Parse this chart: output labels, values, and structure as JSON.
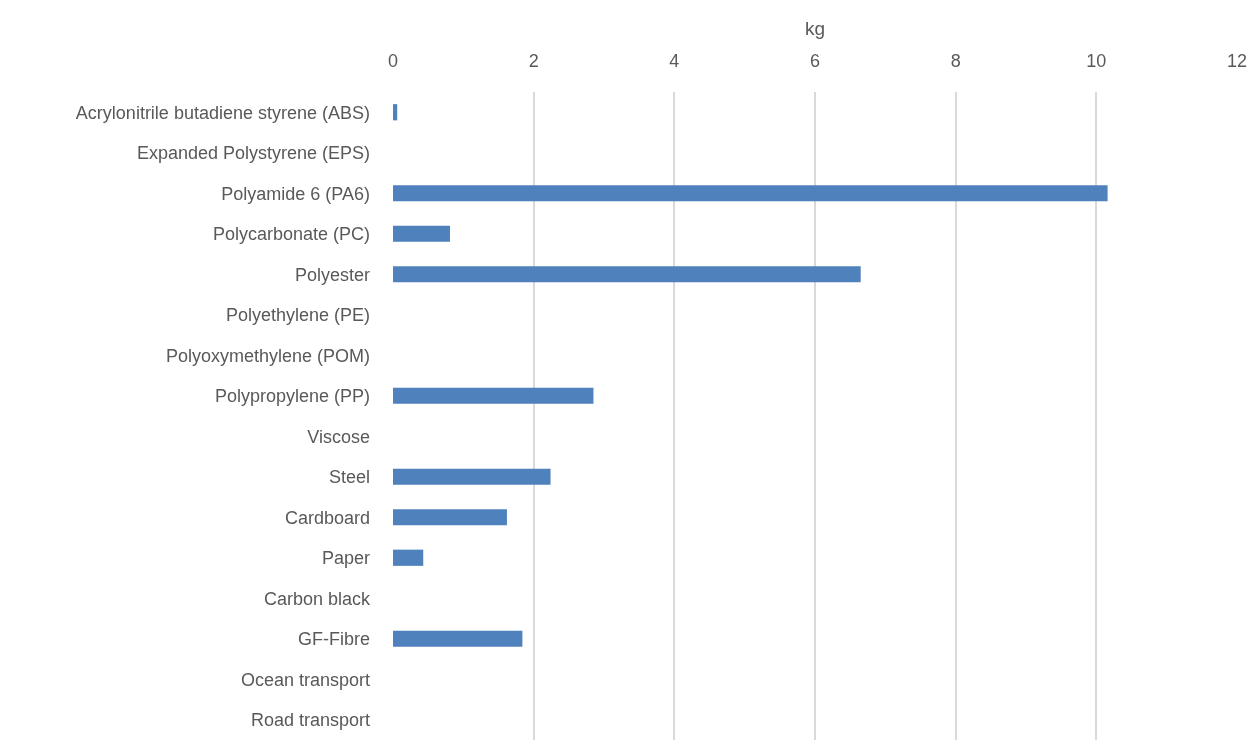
{
  "chart_data": {
    "type": "bar",
    "orientation": "horizontal",
    "xlabel": "kg",
    "categories": [
      "Acrylonitrile butadiene styrene (ABS)",
      "Expanded Polystyrene (EPS)",
      "Polyamide 6 (PA6)",
      "Polycarbonate (PC)",
      "Polyester",
      "Polyethylene (PE)",
      "Polyoxymethylene (POM)",
      "Polypropylene (PP)",
      "Viscose",
      "Steel",
      "Cardboard",
      "Paper",
      "Carbon black",
      "GF-Fibre",
      "Ocean transport",
      "Road transport"
    ],
    "values": [
      0.06,
      0,
      10.16,
      0.81,
      6.65,
      0,
      0,
      2.85,
      0,
      2.24,
      1.62,
      0.43,
      0,
      1.84,
      0,
      0
    ],
    "color": "#4f81bd",
    "xlim": [
      0,
      12
    ],
    "xticks": [
      0,
      2,
      4,
      6,
      8,
      10,
      12
    ],
    "grid": "x",
    "legend": false
  }
}
